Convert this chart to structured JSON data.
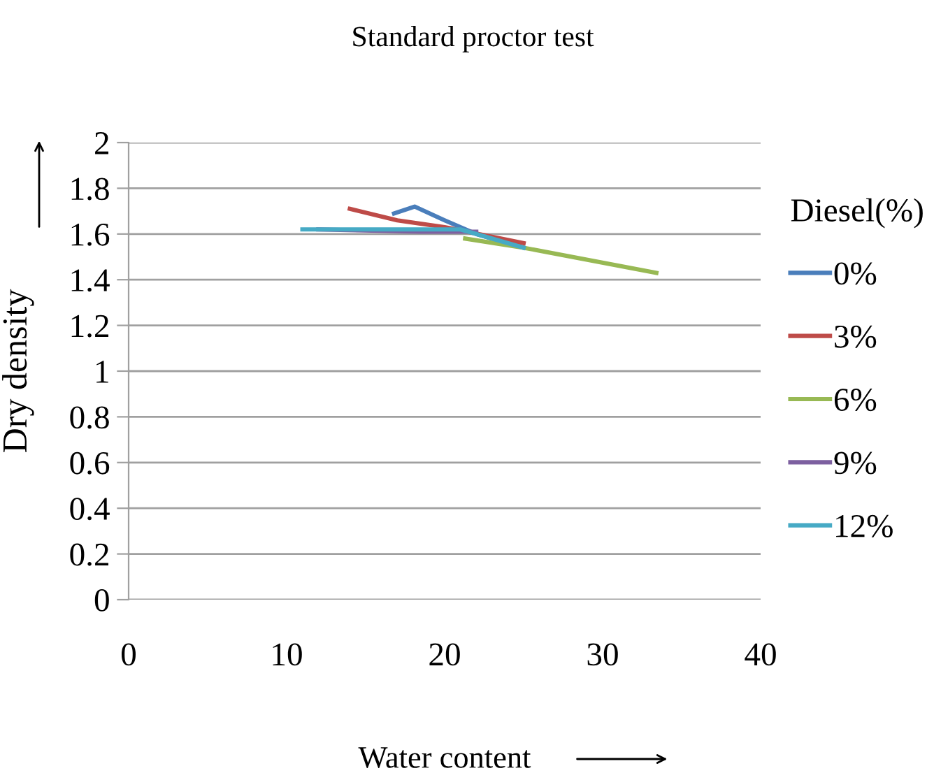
{
  "chart_data": {
    "type": "line",
    "title": "Standard proctor test",
    "xlabel": "Water content",
    "ylabel": "Dry density",
    "legend_title": "Diesel(%)",
    "xlim": [
      0,
      40
    ],
    "xticks": [
      0,
      10,
      20,
      30,
      40
    ],
    "ylim": [
      0,
      2
    ],
    "yticks": [
      0,
      0.2,
      0.4,
      0.6,
      0.8,
      1,
      1.2,
      1.4,
      1.6,
      1.8,
      2
    ],
    "grid": "y",
    "legend": "right",
    "marker": "none",
    "line_style": "solid",
    "series": [
      {
        "name": "0%",
        "color": "#4a7ebb",
        "x": [
          16.8,
          18.1,
          20,
          22,
          25
        ],
        "values": [
          1.69,
          1.72,
          1.66,
          1.6,
          1.54
        ]
      },
      {
        "name": "3%",
        "color": "#be4b48",
        "x": [
          14,
          17,
          20,
          25
        ],
        "values": [
          1.71,
          1.66,
          1.63,
          1.56
        ]
      },
      {
        "name": "6%",
        "color": "#98b954",
        "x": [
          21.3,
          25,
          33.4
        ],
        "values": [
          1.58,
          1.54,
          1.43
        ]
      },
      {
        "name": "9%",
        "color": "#7d60a0",
        "x": [
          12,
          18.5,
          22
        ],
        "values": [
          1.62,
          1.61,
          1.61
        ]
      },
      {
        "name": "12%",
        "color": "#46aac5",
        "x": [
          11,
          21,
          25
        ],
        "values": [
          1.62,
          1.62,
          1.54
        ]
      }
    ]
  }
}
